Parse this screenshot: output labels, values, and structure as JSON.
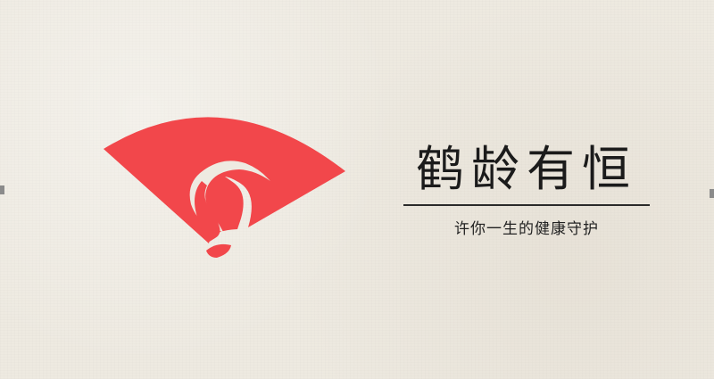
{
  "brand": {
    "name": "鹤龄有恒",
    "slogan": "许你一生的健康守护"
  },
  "colors": {
    "fan_red": "#f2474b",
    "background": "#eeeae1",
    "text": "#1b1b1b"
  },
  "logo": {
    "icon": "crane-fan-logo-icon"
  }
}
